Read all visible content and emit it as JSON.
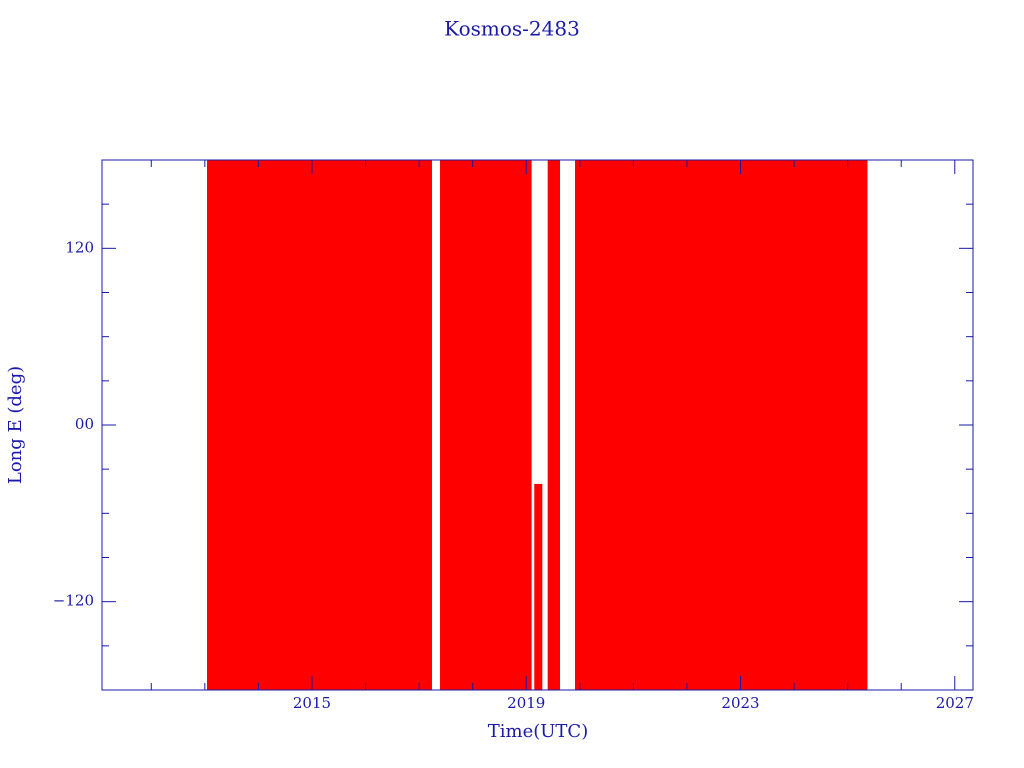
{
  "chart_data": {
    "type": "range",
    "title": "Kosmos-2483",
    "x_label": "Time(UTC)",
    "y_label": "Long E (deg)",
    "color": "#ff0000",
    "spans": [
      {
        "x": [
          2013.04,
          2017.24
        ],
        "y": [
          -180,
          180
        ]
      },
      {
        "x": [
          2017.39,
          2019.1
        ],
        "y": [
          -180,
          180
        ]
      },
      {
        "x": [
          2019.15,
          2019.3
        ],
        "y": [
          -180,
          -40
        ]
      },
      {
        "x": [
          2019.4,
          2019.63
        ],
        "y": [
          -180,
          180
        ]
      },
      {
        "x": [
          2019.91,
          2025.37
        ],
        "y": [
          -180,
          180
        ]
      }
    ],
    "xlim": [
      2011.08,
      2027.34
    ],
    "xticks": [
      2015,
      2019,
      2023,
      2027
    ],
    "xminorticks": [
      2012,
      2013,
      2014,
      2016,
      2017,
      2018,
      2020,
      2021,
      2022,
      2024,
      2025,
      2026
    ],
    "ylim": [
      -180,
      180
    ],
    "yticks": [
      {
        "value": -120,
        "label": "−120"
      },
      {
        "value": 0,
        "label": "00"
      },
      120
    ],
    "yminorticks": [
      -150,
      -90,
      -60,
      -30,
      30,
      60,
      90,
      150
    ]
  }
}
